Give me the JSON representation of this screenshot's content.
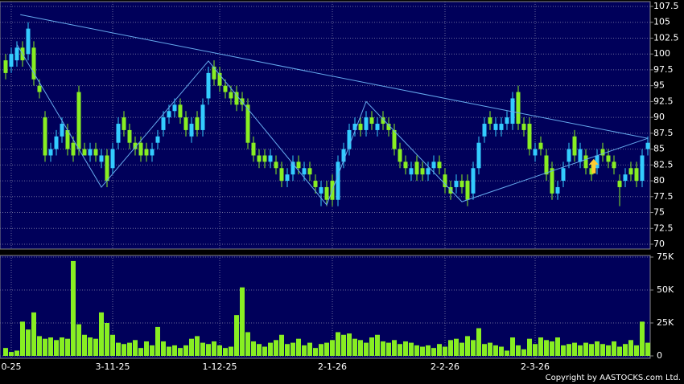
{
  "chart_data": {
    "type": "candlestick",
    "x": [
      null,
      "0-25",
      null,
      null,
      null,
      null,
      null,
      null,
      null,
      null,
      null,
      null,
      null,
      null,
      null,
      null,
      null,
      null,
      null,
      "3-11-25",
      null,
      null,
      null,
      null,
      null,
      null,
      null,
      null,
      null,
      null,
      null,
      null,
      null,
      null,
      null,
      null,
      null,
      null,
      "1-12-25",
      null,
      null,
      null,
      null,
      null,
      null,
      null,
      null,
      null,
      null,
      null,
      null,
      null,
      null,
      null,
      null,
      null,
      null,
      null,
      "2-1-26",
      null,
      null,
      null,
      null,
      null,
      null,
      null,
      null,
      null,
      null,
      null,
      null,
      null,
      null,
      null,
      null,
      null,
      null,
      null,
      "2-2-26",
      null,
      null,
      null,
      null,
      null,
      null,
      null,
      null,
      null,
      null,
      null,
      null,
      null,
      null,
      null,
      "2-3-26",
      null,
      null,
      null,
      null,
      null,
      null,
      null,
      null,
      null,
      null,
      null,
      null,
      null,
      null,
      null,
      null,
      null,
      null,
      null,
      null
    ],
    "open": [
      99,
      98,
      99,
      101,
      100,
      101,
      95,
      90,
      84,
      85,
      87,
      88,
      86,
      94,
      85,
      84,
      85,
      83,
      84,
      82,
      86,
      90,
      88,
      86,
      86,
      85,
      84,
      86,
      88,
      90,
      91,
      92,
      90,
      87,
      90,
      88,
      93,
      98,
      97,
      95,
      94,
      94,
      93,
      92,
      86,
      84,
      84,
      83,
      83,
      82,
      80,
      81,
      83,
      81,
      82,
      80,
      78,
      79,
      80,
      77,
      83,
      85,
      88,
      89,
      88,
      90,
      88,
      90,
      89,
      88,
      85,
      83,
      81,
      83,
      82,
      81,
      82,
      83,
      81,
      79,
      79,
      80,
      80,
      78,
      82,
      87,
      90,
      88,
      88,
      89,
      89,
      94,
      89,
      89,
      84,
      86,
      84,
      82,
      78,
      80,
      83,
      87,
      83,
      84,
      82,
      82,
      85,
      84,
      83,
      80,
      80,
      82,
      82,
      80,
      85
    ],
    "high": [
      100,
      101,
      102,
      102,
      105,
      102,
      96,
      91,
      86,
      88,
      90,
      89,
      87,
      95,
      86,
      86,
      86,
      85,
      85,
      86,
      90,
      91,
      89,
      87,
      87,
      86,
      86,
      88,
      91,
      92,
      93,
      93,
      91,
      90,
      91,
      93,
      98,
      99,
      98,
      96,
      95,
      95,
      94,
      93,
      87,
      85,
      85,
      85,
      84,
      83,
      82,
      84,
      84,
      83,
      83,
      81,
      80,
      80,
      81,
      84,
      86,
      89,
      90,
      90,
      91,
      91,
      90,
      91,
      90,
      89,
      86,
      84,
      83,
      84,
      83,
      83,
      84,
      84,
      82,
      80,
      81,
      81,
      81,
      83,
      87,
      90,
      91,
      90,
      90,
      91,
      94,
      95,
      90,
      90,
      86,
      87,
      85,
      83,
      80,
      83,
      86,
      88,
      86,
      85,
      83,
      85,
      86,
      85,
      84,
      81,
      82,
      83,
      83,
      85,
      87
    ],
    "low": [
      96,
      97,
      98,
      98,
      99,
      95,
      93,
      83,
      83,
      84,
      86,
      84,
      83,
      84,
      84,
      83,
      83,
      82,
      79,
      81,
      85,
      87,
      85,
      84,
      83,
      83,
      83,
      85,
      87,
      89,
      90,
      89,
      87,
      86,
      87,
      87,
      92,
      95,
      94,
      93,
      92,
      91,
      91,
      85,
      83,
      82,
      82,
      82,
      81,
      79,
      79,
      80,
      81,
      80,
      80,
      78,
      76,
      76,
      76,
      76,
      82,
      84,
      87,
      87,
      87,
      88,
      87,
      88,
      87,
      84,
      82,
      81,
      80,
      80,
      80,
      80,
      81,
      81,
      78,
      77,
      78,
      78,
      76,
      77,
      81,
      86,
      88,
      87,
      87,
      88,
      88,
      88,
      87,
      84,
      83,
      84,
      80,
      77,
      77,
      79,
      82,
      83,
      82,
      81,
      80,
      81,
      83,
      82,
      81,
      76,
      79,
      80,
      79,
      79,
      84
    ],
    "close": [
      97,
      100,
      101,
      99,
      104,
      96,
      94,
      84,
      85,
      87,
      89,
      85,
      84,
      85,
      84,
      85,
      84,
      84,
      80,
      85,
      89,
      88,
      86,
      85,
      84,
      84,
      85,
      87,
      90,
      91,
      92,
      90,
      88,
      89,
      88,
      92,
      97,
      96,
      95,
      94,
      93,
      92,
      92,
      86,
      84,
      83,
      83,
      84,
      82,
      80,
      81,
      83,
      82,
      82,
      81,
      79,
      79,
      77,
      77,
      83,
      85,
      88,
      89,
      88,
      90,
      89,
      89,
      89,
      88,
      85,
      83,
      82,
      82,
      81,
      81,
      82,
      83,
      82,
      79,
      78,
      80,
      79,
      77,
      82,
      86,
      89,
      89,
      89,
      89,
      90,
      93,
      89,
      88,
      85,
      85,
      85,
      81,
      78,
      79,
      82,
      85,
      84,
      85,
      82,
      81,
      84,
      84,
      83,
      82,
      79,
      81,
      81,
      80,
      84,
      86
    ],
    "up_color": "#33ccff",
    "down_color": "#88ee22",
    "ylim": [
      70,
      107.5
    ],
    "yticks": [
      70,
      72.5,
      75,
      77.5,
      80,
      82.5,
      85,
      87.5,
      90,
      92.5,
      95,
      97.5,
      100,
      102.5,
      105,
      107.5
    ],
    "grid": true,
    "overlays": [
      {
        "color": "#66aaee",
        "points": [
          [
            2.6,
            106.2
          ],
          [
            114,
            86.7
          ]
        ]
      },
      {
        "color": "#66aaee",
        "points": [
          [
            2,
            101.5
          ],
          [
            17,
            79
          ],
          [
            36,
            98.9
          ],
          [
            57,
            76.2
          ],
          [
            64,
            92.5
          ],
          [
            81,
            76.7
          ],
          [
            114,
            86.7
          ]
        ]
      }
    ],
    "marker": {
      "x": 104.4,
      "y": 82.3,
      "color": "#ffcc33"
    },
    "volume": {
      "values": [
        6000,
        3000,
        4000,
        26000,
        20000,
        33000,
        15000,
        13000,
        14000,
        12000,
        14000,
        13000,
        72000,
        24000,
        16000,
        14000,
        13000,
        33000,
        25000,
        16000,
        10000,
        9000,
        10000,
        12000,
        6000,
        11000,
        8000,
        22000,
        11000,
        7000,
        8000,
        6000,
        8000,
        13000,
        15000,
        10000,
        9000,
        11000,
        8000,
        6000,
        7000,
        31000,
        52000,
        18000,
        11000,
        9000,
        7000,
        10000,
        12000,
        16000,
        9000,
        10000,
        13000,
        8000,
        10000,
        6000,
        9000,
        10000,
        12000,
        18000,
        16000,
        17000,
        13000,
        12000,
        10000,
        14000,
        16000,
        11000,
        10000,
        12000,
        9000,
        11000,
        10000,
        8000,
        7000,
        8000,
        6000,
        9000,
        7000,
        12000,
        13000,
        10000,
        15000,
        12000,
        21000,
        9000,
        10000,
        8000,
        7000,
        4000,
        14000,
        8000,
        5000,
        13000,
        9000,
        14000,
        12000,
        11000,
        14000,
        8000,
        9000,
        10000,
        8000,
        10000,
        9000,
        11000,
        9000,
        8000,
        11000,
        7000,
        9000,
        12000,
        8000,
        26000,
        10000
      ],
      "color": "#88ee22",
      "ylim": [
        0,
        75000
      ],
      "yticks": [
        0,
        {
          "value": 25000,
          "label": "25K"
        },
        {
          "value": 50000,
          "label": "50K"
        },
        {
          "value": 75000,
          "label": "75K"
        }
      ]
    },
    "footer": "Copyright by AASTOCKS.com Ltd."
  }
}
